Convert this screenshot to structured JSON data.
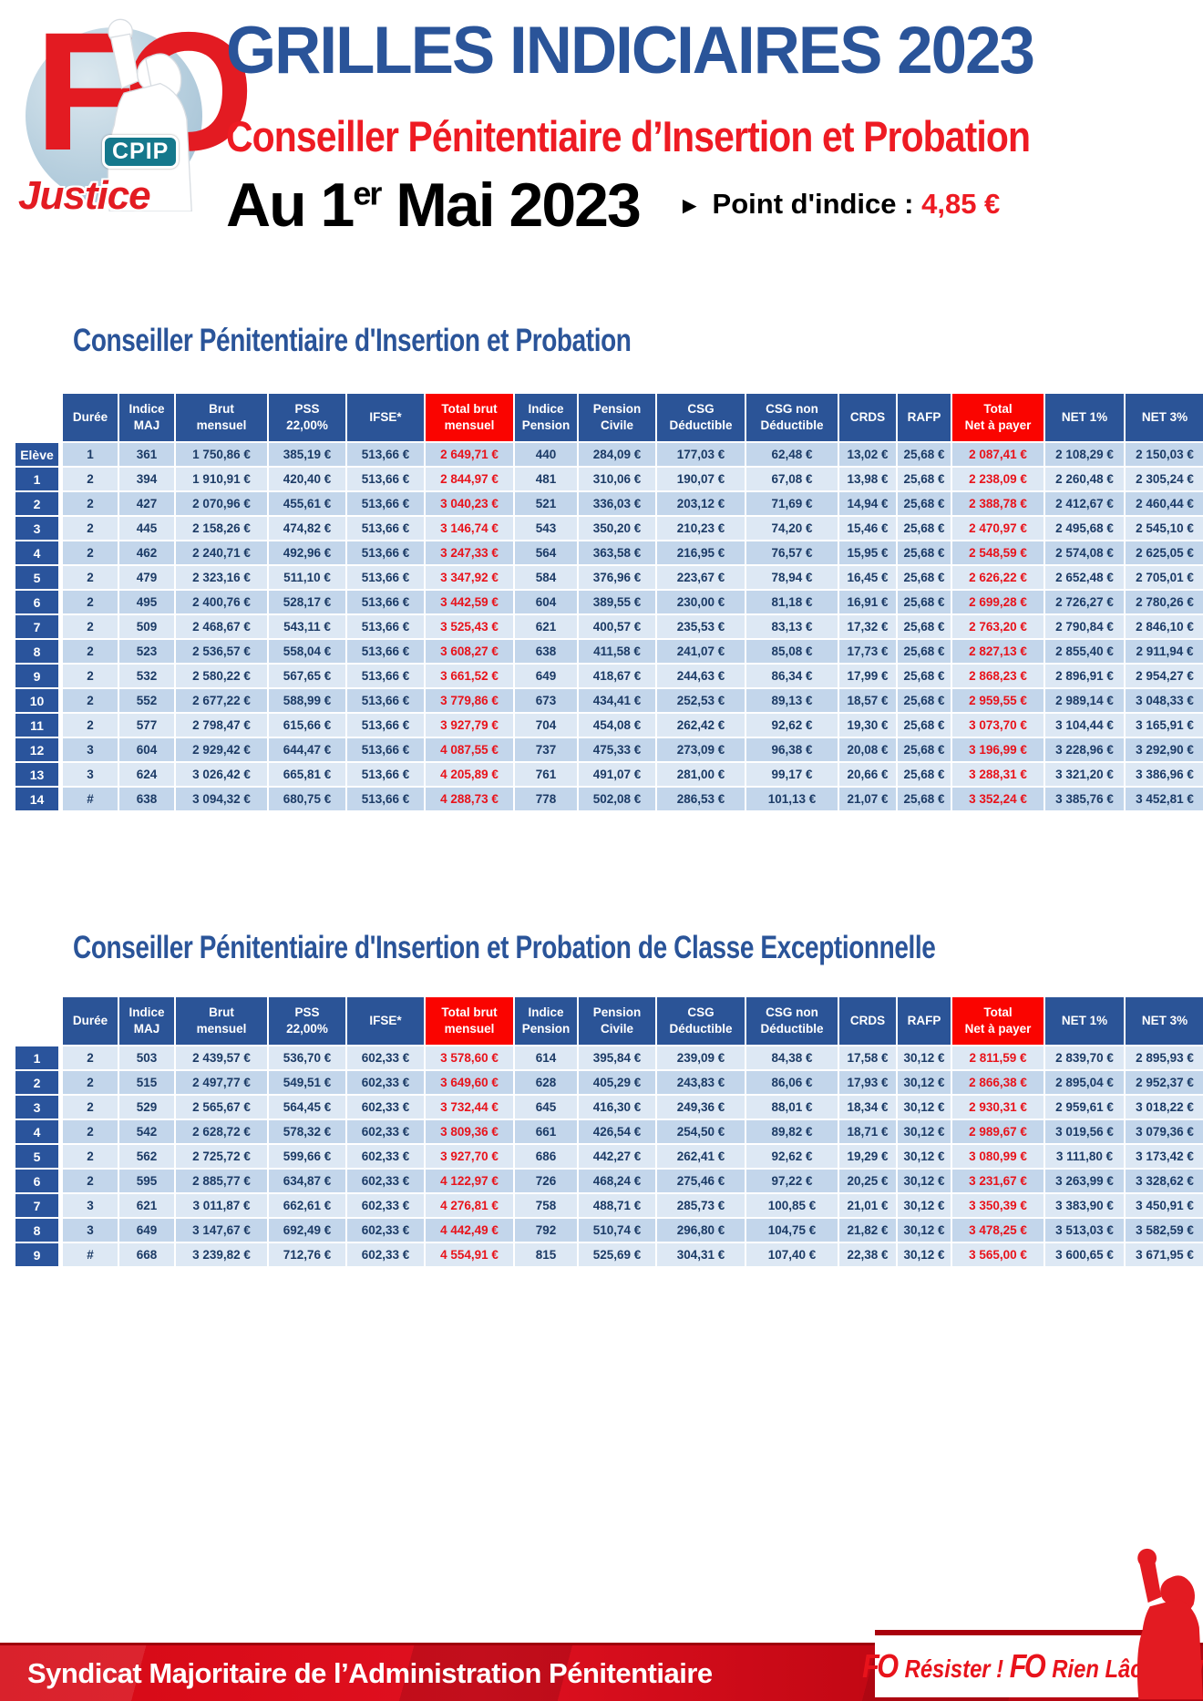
{
  "logo": {
    "fo": "FO",
    "cpip": "CPIP",
    "justice": "Justice"
  },
  "header": {
    "title": "GRILLES INDICIAIRES 2023",
    "subtitle": "Conseiller Pénitentiaire d’Insertion et Probation",
    "date_main": "Au 1",
    "date_sup": "er",
    "date_rest": " Mai 2023",
    "arrow": "►",
    "point_label": "Point d'indice :",
    "point_value": "4,85 €"
  },
  "colors": {
    "title_blue": "#2a5499",
    "accent_red": "#ee1b23",
    "header_blue": "#2b5497",
    "header_red": "#fa0400",
    "row_light": "#dde8f4",
    "row_dark": "#c3d6eb",
    "value_navy": "#1c3b66",
    "red_value": "#e8131b",
    "footer_red": "#c00713"
  },
  "tables": [
    {
      "title": "Conseiller Pénitentiaire d'Insertion et Probation",
      "columns": [
        {
          "lines": [
            "Durée"
          ]
        },
        {
          "lines": [
            "Indice",
            "MAJ"
          ]
        },
        {
          "lines": [
            "Brut",
            "mensuel"
          ]
        },
        {
          "lines": [
            "PSS",
            "22,00%"
          ]
        },
        {
          "lines": [
            "IFSE*"
          ]
        },
        {
          "lines": [
            "Total brut",
            "mensuel"
          ],
          "red": true
        },
        {
          "lines": [
            "Indice",
            "Pension"
          ]
        },
        {
          "lines": [
            "Pension",
            "Civile"
          ]
        },
        {
          "lines": [
            "CSG",
            "Déductible"
          ]
        },
        {
          "lines": [
            "CSG non",
            "Déductible"
          ]
        },
        {
          "lines": [
            "CRDS"
          ]
        },
        {
          "lines": [
            "RAFP"
          ]
        },
        {
          "lines": [
            "Total",
            "Net à payer"
          ],
          "red": true
        },
        {
          "lines": [
            "NET 1%"
          ]
        },
        {
          "lines": [
            "NET 3%"
          ]
        }
      ],
      "red_columns": [
        5,
        12
      ],
      "rows": [
        {
          "label": "Elève",
          "cells": [
            "1",
            "361",
            "1 750,86 €",
            "385,19 €",
            "513,66 €",
            "2 649,71 €",
            "440",
            "284,09 €",
            "177,03 €",
            "62,48 €",
            "13,02 €",
            "25,68 €",
            "2 087,41 €",
            "2 108,29 €",
            "2 150,03 €"
          ]
        },
        {
          "label": "1",
          "cells": [
            "2",
            "394",
            "1 910,91 €",
            "420,40 €",
            "513,66 €",
            "2 844,97 €",
            "481",
            "310,06 €",
            "190,07 €",
            "67,08 €",
            "13,98 €",
            "25,68 €",
            "2 238,09 €",
            "2 260,48 €",
            "2 305,24 €"
          ]
        },
        {
          "label": "2",
          "cells": [
            "2",
            "427",
            "2 070,96 €",
            "455,61 €",
            "513,66 €",
            "3 040,23 €",
            "521",
            "336,03 €",
            "203,12 €",
            "71,69 €",
            "14,94 €",
            "25,68 €",
            "2 388,78 €",
            "2 412,67 €",
            "2 460,44 €"
          ]
        },
        {
          "label": "3",
          "cells": [
            "2",
            "445",
            "2 158,26 €",
            "474,82 €",
            "513,66 €",
            "3 146,74 €",
            "543",
            "350,20 €",
            "210,23 €",
            "74,20 €",
            "15,46 €",
            "25,68 €",
            "2 470,97 €",
            "2 495,68 €",
            "2 545,10 €"
          ]
        },
        {
          "label": "4",
          "cells": [
            "2",
            "462",
            "2 240,71 €",
            "492,96 €",
            "513,66 €",
            "3 247,33 €",
            "564",
            "363,58 €",
            "216,95 €",
            "76,57 €",
            "15,95 €",
            "25,68 €",
            "2 548,59 €",
            "2 574,08 €",
            "2 625,05 €"
          ]
        },
        {
          "label": "5",
          "cells": [
            "2",
            "479",
            "2 323,16 €",
            "511,10 €",
            "513,66 €",
            "3 347,92 €",
            "584",
            "376,96 €",
            "223,67 €",
            "78,94 €",
            "16,45 €",
            "25,68 €",
            "2 626,22 €",
            "2 652,48 €",
            "2 705,01 €"
          ]
        },
        {
          "label": "6",
          "cells": [
            "2",
            "495",
            "2 400,76 €",
            "528,17 €",
            "513,66 €",
            "3 442,59 €",
            "604",
            "389,55 €",
            "230,00 €",
            "81,18 €",
            "16,91 €",
            "25,68 €",
            "2 699,28 €",
            "2 726,27 €",
            "2 780,26 €"
          ]
        },
        {
          "label": "7",
          "cells": [
            "2",
            "509",
            "2 468,67 €",
            "543,11 €",
            "513,66 €",
            "3 525,43 €",
            "621",
            "400,57 €",
            "235,53 €",
            "83,13 €",
            "17,32 €",
            "25,68 €",
            "2 763,20 €",
            "2 790,84 €",
            "2 846,10 €"
          ]
        },
        {
          "label": "8",
          "cells": [
            "2",
            "523",
            "2 536,57 €",
            "558,04 €",
            "513,66 €",
            "3 608,27 €",
            "638",
            "411,58 €",
            "241,07 €",
            "85,08 €",
            "17,73 €",
            "25,68 €",
            "2 827,13 €",
            "2 855,40 €",
            "2 911,94 €"
          ]
        },
        {
          "label": "9",
          "cells": [
            "2",
            "532",
            "2 580,22 €",
            "567,65 €",
            "513,66 €",
            "3 661,52 €",
            "649",
            "418,67 €",
            "244,63 €",
            "86,34 €",
            "17,99 €",
            "25,68 €",
            "2 868,23 €",
            "2 896,91 €",
            "2 954,27 €"
          ]
        },
        {
          "label": "10",
          "cells": [
            "2",
            "552",
            "2 677,22 €",
            "588,99 €",
            "513,66 €",
            "3 779,86 €",
            "673",
            "434,41 €",
            "252,53 €",
            "89,13 €",
            "18,57 €",
            "25,68 €",
            "2 959,55 €",
            "2 989,14 €",
            "3 048,33 €"
          ]
        },
        {
          "label": "11",
          "cells": [
            "2",
            "577",
            "2 798,47 €",
            "615,66 €",
            "513,66 €",
            "3 927,79 €",
            "704",
            "454,08 €",
            "262,42 €",
            "92,62 €",
            "19,30 €",
            "25,68 €",
            "3 073,70 €",
            "3 104,44 €",
            "3 165,91 €"
          ]
        },
        {
          "label": "12",
          "cells": [
            "3",
            "604",
            "2 929,42 €",
            "644,47 €",
            "513,66 €",
            "4 087,55 €",
            "737",
            "475,33 €",
            "273,09 €",
            "96,38 €",
            "20,08 €",
            "25,68 €",
            "3 196,99 €",
            "3 228,96 €",
            "3 292,90 €"
          ]
        },
        {
          "label": "13",
          "cells": [
            "3",
            "624",
            "3 026,42 €",
            "665,81 €",
            "513,66 €",
            "4 205,89 €",
            "761",
            "491,07 €",
            "281,00 €",
            "99,17 €",
            "20,66 €",
            "25,68 €",
            "3 288,31 €",
            "3 321,20 €",
            "3 386,96 €"
          ]
        },
        {
          "label": "14",
          "cells": [
            "#",
            "638",
            "3 094,32 €",
            "680,75 €",
            "513,66 €",
            "4 288,73 €",
            "778",
            "502,08 €",
            "286,53 €",
            "101,13 €",
            "21,07 €",
            "25,68 €",
            "3 352,24 €",
            "3 385,76 €",
            "3 452,81 €"
          ]
        }
      ]
    },
    {
      "title": "Conseiller Pénitentiaire d'Insertion et Probation de Classe Exceptionnelle",
      "columns": [
        {
          "lines": [
            "Durée"
          ]
        },
        {
          "lines": [
            "Indice",
            "MAJ"
          ]
        },
        {
          "lines": [
            "Brut",
            "mensuel"
          ]
        },
        {
          "lines": [
            "PSS",
            "22,00%"
          ]
        },
        {
          "lines": [
            "IFSE*"
          ]
        },
        {
          "lines": [
            "Total brut",
            "mensuel"
          ],
          "red": true
        },
        {
          "lines": [
            "Indice",
            "Pension"
          ]
        },
        {
          "lines": [
            "Pension",
            "Civile"
          ]
        },
        {
          "lines": [
            "CSG",
            "Déductible"
          ]
        },
        {
          "lines": [
            "CSG non",
            "Déductible"
          ]
        },
        {
          "lines": [
            "CRDS"
          ]
        },
        {
          "lines": [
            "RAFP"
          ]
        },
        {
          "lines": [
            "Total",
            "Net à payer"
          ],
          "red": true
        },
        {
          "lines": [
            "NET 1%"
          ]
        },
        {
          "lines": [
            "NET 3%"
          ]
        }
      ],
      "red_columns": [
        5,
        12
      ],
      "rows": [
        {
          "label": "1",
          "cells": [
            "2",
            "503",
            "2 439,57 €",
            "536,70 €",
            "602,33 €",
            "3 578,60 €",
            "614",
            "395,84 €",
            "239,09 €",
            "84,38 €",
            "17,58 €",
            "30,12 €",
            "2 811,59 €",
            "2 839,70 €",
            "2 895,93 €"
          ]
        },
        {
          "label": "2",
          "cells": [
            "2",
            "515",
            "2 497,77 €",
            "549,51 €",
            "602,33 €",
            "3 649,60 €",
            "628",
            "405,29 €",
            "243,83 €",
            "86,06 €",
            "17,93 €",
            "30,12 €",
            "2 866,38 €",
            "2 895,04 €",
            "2 952,37 €"
          ]
        },
        {
          "label": "3",
          "cells": [
            "2",
            "529",
            "2 565,67 €",
            "564,45 €",
            "602,33 €",
            "3 732,44 €",
            "645",
            "416,30 €",
            "249,36 €",
            "88,01 €",
            "18,34 €",
            "30,12 €",
            "2 930,31 €",
            "2 959,61 €",
            "3 018,22 €"
          ]
        },
        {
          "label": "4",
          "cells": [
            "2",
            "542",
            "2 628,72 €",
            "578,32 €",
            "602,33 €",
            "3 809,36 €",
            "661",
            "426,54 €",
            "254,50 €",
            "89,82 €",
            "18,71 €",
            "30,12 €",
            "2 989,67 €",
            "3 019,56 €",
            "3 079,36 €"
          ]
        },
        {
          "label": "5",
          "cells": [
            "2",
            "562",
            "2 725,72 €",
            "599,66 €",
            "602,33 €",
            "3 927,70 €",
            "686",
            "442,27 €",
            "262,41 €",
            "92,62 €",
            "19,29 €",
            "30,12 €",
            "3 080,99 €",
            "3 111,80 €",
            "3 173,42 €"
          ]
        },
        {
          "label": "6",
          "cells": [
            "2",
            "595",
            "2 885,77 €",
            "634,87 €",
            "602,33 €",
            "4 122,97 €",
            "726",
            "468,24 €",
            "275,46 €",
            "97,22 €",
            "20,25 €",
            "30,12 €",
            "3 231,67 €",
            "3 263,99 €",
            "3 328,62 €"
          ]
        },
        {
          "label": "7",
          "cells": [
            "3",
            "621",
            "3 011,87 €",
            "662,61 €",
            "602,33 €",
            "4 276,81 €",
            "758",
            "488,71 €",
            "285,73 €",
            "100,85 €",
            "21,01 €",
            "30,12 €",
            "3 350,39 €",
            "3 383,90 €",
            "3 450,91 €"
          ]
        },
        {
          "label": "8",
          "cells": [
            "3",
            "649",
            "3 147,67 €",
            "692,49 €",
            "602,33 €",
            "4 442,49 €",
            "792",
            "510,74 €",
            "296,80 €",
            "104,75 €",
            "21,82 €",
            "30,12 €",
            "3 478,25 €",
            "3 513,03 €",
            "3 582,59 €"
          ]
        },
        {
          "label": "9",
          "cells": [
            "#",
            "668",
            "3 239,82 €",
            "712,76 €",
            "602,33 €",
            "4 554,91 €",
            "815",
            "525,69 €",
            "304,31 €",
            "107,40 €",
            "22,38 €",
            "30,12 €",
            "3 565,00 €",
            "3 600,65 €",
            "3 671,95 €"
          ]
        }
      ]
    }
  ],
  "footer": {
    "left_text": "Syndicat Majoritaire de l’Administration Pénitentiaire",
    "fo1": "FO",
    "text1": " Résister ! ",
    "fo2": "FO",
    "text2": " Rien Lâcher !!!"
  }
}
